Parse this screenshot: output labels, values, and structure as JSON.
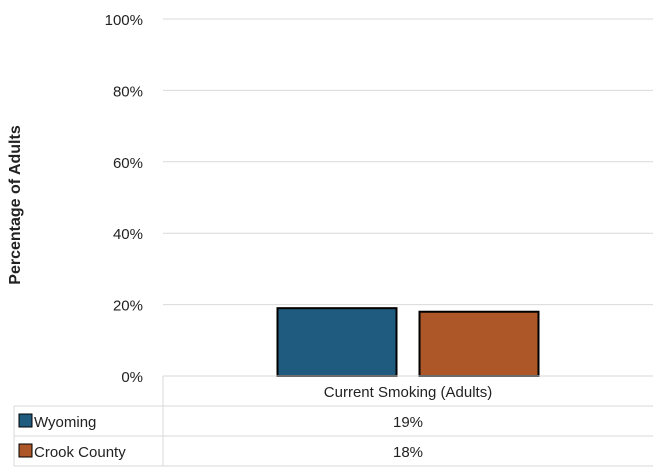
{
  "chart_data": {
    "type": "bar",
    "ylabel": "Percentage of Adults",
    "ylim": [
      0,
      100
    ],
    "yticks": [
      0,
      20,
      40,
      60,
      80,
      100
    ],
    "tick_suffix": "%",
    "grid": true,
    "categories": [
      "Current Smoking (Adults)"
    ],
    "series": [
      {
        "name": "Wyoming",
        "values": [
          19
        ],
        "label": "19%",
        "color": "#1f5b7e"
      },
      {
        "name": "Crook County",
        "values": [
          18
        ],
        "label": "18%",
        "color": "#ad5627"
      }
    ],
    "legend": "data-table-below"
  }
}
